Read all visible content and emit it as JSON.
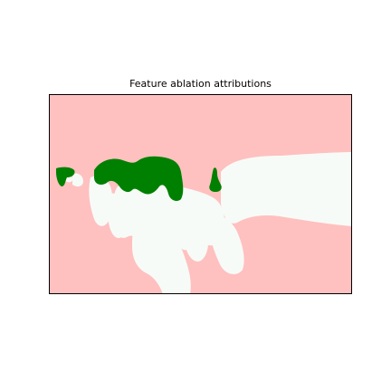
{
  "figure": {
    "title": "Feature ablation attributions"
  },
  "colors": {
    "negative_region": "#ffc0c0",
    "neutral_region": "#f7fbf7",
    "positive_region": "#008000",
    "axes_border": "#000000",
    "background": "#ffffff"
  }
}
